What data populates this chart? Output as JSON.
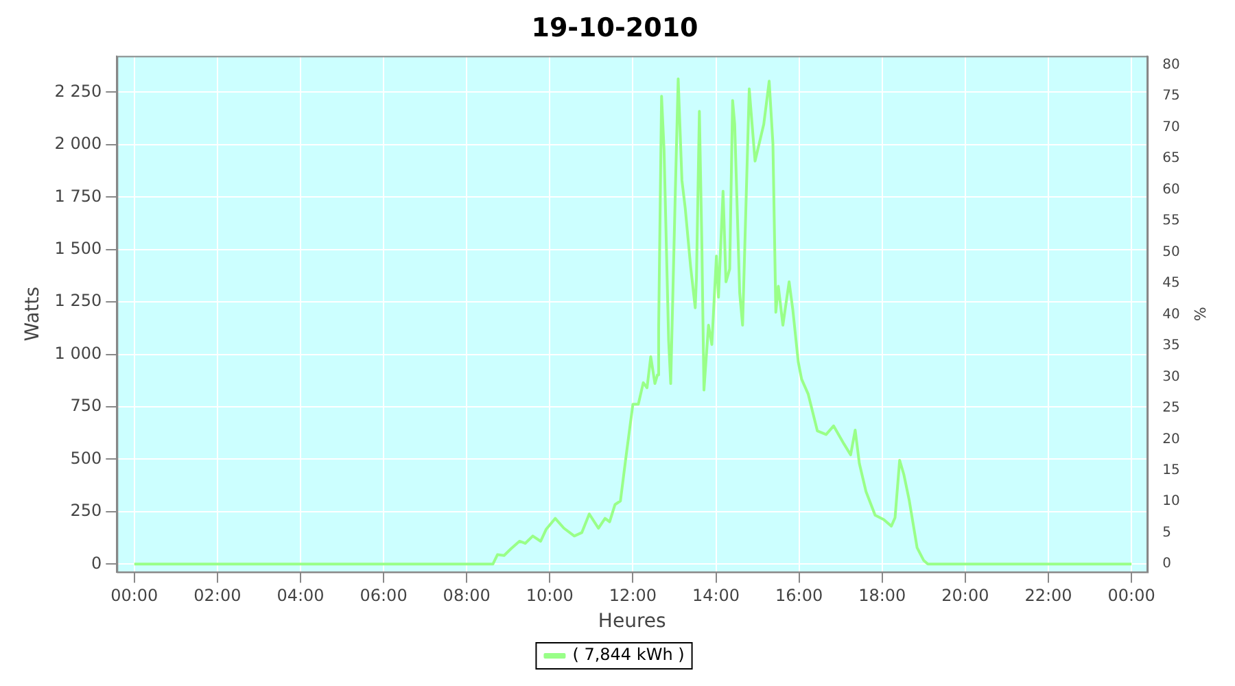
{
  "chart_data": {
    "type": "line",
    "title": "19-10-2010",
    "xlabel": "Heures",
    "ylabel": "Watts",
    "y2label": "%",
    "xlim": [
      -0.42,
      24.38
    ],
    "xticks": [
      {
        "value": 0,
        "label": "00:00"
      },
      {
        "value": 2,
        "label": "02:00"
      },
      {
        "value": 4,
        "label": "04:00"
      },
      {
        "value": 6,
        "label": "06:00"
      },
      {
        "value": 8,
        "label": "08:00"
      },
      {
        "value": 10,
        "label": "10:00"
      },
      {
        "value": 12,
        "label": "12:00"
      },
      {
        "value": 14,
        "label": "14:00"
      },
      {
        "value": 16,
        "label": "16:00"
      },
      {
        "value": 18,
        "label": "18:00"
      },
      {
        "value": 20,
        "label": "20:00"
      },
      {
        "value": 22,
        "label": "22:00"
      },
      {
        "value": 24,
        "label": "00:00"
      }
    ],
    "ylim": [
      -37,
      2423
    ],
    "yticks": [
      0,
      250,
      500,
      750,
      {
        "value": 1000,
        "label": "1 000"
      },
      {
        "value": 1250,
        "label": "1 250"
      },
      {
        "value": 1500,
        "label": "1 500"
      },
      {
        "value": 1750,
        "label": "1 750"
      },
      {
        "value": 2000,
        "label": "2 000"
      },
      {
        "value": 2250,
        "label": "2 250"
      }
    ],
    "y2lim": [
      -1.25,
      81.45
    ],
    "y2ticks": [
      0,
      5,
      10,
      15,
      20,
      25,
      30,
      35,
      40,
      45,
      50,
      55,
      60,
      65,
      70,
      75,
      80
    ],
    "grid": true,
    "legend": "bottom",
    "marker": "none",
    "line_style": "solid",
    "series": [
      {
        "name": "( 7,844 kWh )",
        "color": "#99ff88",
        "x": [
          0,
          8.63,
          8.74,
          8.9,
          9.06,
          9.27,
          9.41,
          9.59,
          9.78,
          9.91,
          10.13,
          10.34,
          10.59,
          10.77,
          10.95,
          11.17,
          11.33,
          11.44,
          11.57,
          11.7,
          11.84,
          12.0,
          12.13,
          12.25,
          12.34,
          12.43,
          12.53,
          12.59,
          12.62,
          12.69,
          12.75,
          12.86,
          12.91,
          13.02,
          13.09,
          13.18,
          13.26,
          13.39,
          13.5,
          13.53,
          13.6,
          13.66,
          13.71,
          13.82,
          13.9,
          14.01,
          14.06,
          14.17,
          14.24,
          14.33,
          14.4,
          14.45,
          14.57,
          14.64,
          14.8,
          14.94,
          15.15,
          15.28,
          15.37,
          15.44,
          15.5,
          15.61,
          15.76,
          15.85,
          15.98,
          16.06,
          16.22,
          16.44,
          16.65,
          16.83,
          17.08,
          17.24,
          17.35,
          17.45,
          17.61,
          17.83,
          18.04,
          18.22,
          18.31,
          18.42,
          18.52,
          18.65,
          18.84,
          19.0,
          19.1,
          24
        ],
        "values": [
          0,
          0,
          45,
          41,
          72,
          109,
          99,
          134,
          109,
          165,
          218,
          171,
          134,
          150,
          239,
          171,
          218,
          202,
          284,
          301,
          521,
          762,
          762,
          865,
          841,
          989,
          861,
          902,
          1129,
          2231,
          1974,
          1067,
          861,
          1768,
          2314,
          1830,
          1696,
          1417,
          1222,
          1366,
          2159,
          1521,
          830,
          1139,
          1047,
          1469,
          1273,
          1778,
          1346,
          1407,
          2211,
          2098,
          1294,
          1139,
          2266,
          1922,
          2098,
          2303,
          2005,
          1201,
          1325,
          1139,
          1346,
          1211,
          964,
          882,
          810,
          635,
          618,
          659,
          573,
          521,
          639,
          480,
          346,
          233,
          212,
          181,
          222,
          495,
          428,
          305,
          78,
          17,
          0,
          0
        ]
      }
    ]
  }
}
